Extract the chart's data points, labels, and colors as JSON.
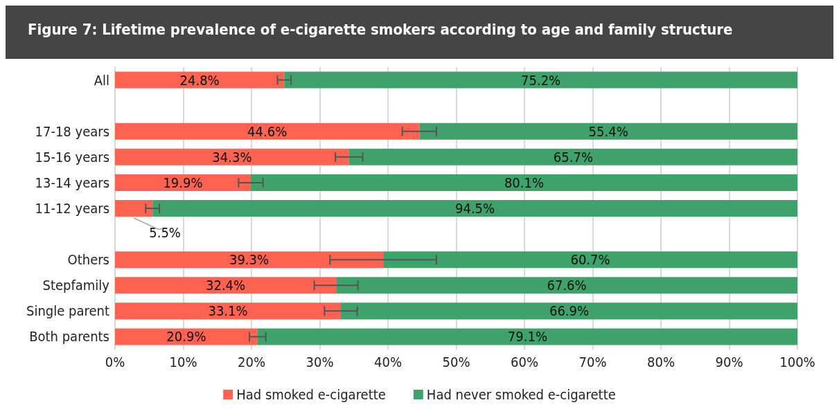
{
  "chart_data": {
    "type": "bar",
    "orientation": "horizontal",
    "stacked": true,
    "title": "Figure 7: Lifetime prevalence of e-cigarette smokers according to age and family structure",
    "categories": [
      "All",
      null,
      "17-18 years",
      "15-16 years",
      "13-14 years",
      "11-12 years",
      null,
      "Others",
      "Stepfamily",
      "Single parent",
      "Both parents"
    ],
    "series": [
      {
        "name": "Had smoked e-cigarette",
        "color": "#fe6250",
        "values": [
          24.8,
          null,
          44.6,
          34.3,
          19.9,
          5.5,
          null,
          39.3,
          32.4,
          33.1,
          20.9
        ],
        "value_labels": [
          "24.8%",
          null,
          "44.6%",
          "34.3%",
          "19.9%",
          "5.5%",
          null,
          "39.3%",
          "32.4%",
          "33.1%",
          "20.9%"
        ],
        "errors": [
          1.0,
          null,
          2.5,
          2.0,
          1.8,
          1.0,
          null,
          7.8,
          3.2,
          2.4,
          1.2
        ]
      },
      {
        "name": "Had never smoked e-cigarette",
        "color": "#40a26b",
        "values": [
          75.2,
          null,
          55.4,
          65.7,
          80.1,
          94.5,
          null,
          60.7,
          67.6,
          66.9,
          79.1
        ],
        "value_labels": [
          "75.2%",
          null,
          "55.4%",
          "65.7%",
          "80.1%",
          "94.5%",
          null,
          "60.7%",
          "67.6%",
          "66.9%",
          "79.1%"
        ]
      }
    ],
    "xlim": [
      0,
      100
    ],
    "xticks": [
      {
        "value": 0,
        "label": "0%"
      },
      {
        "value": 10,
        "label": "10%"
      },
      {
        "value": 20,
        "label": "20%"
      },
      {
        "value": 30,
        "label": "30%"
      },
      {
        "value": 40,
        "label": "40%"
      },
      {
        "value": 50,
        "label": "50%"
      },
      {
        "value": 60,
        "label": "60%"
      },
      {
        "value": 70,
        "label": "70%"
      },
      {
        "value": 80,
        "label": "80%"
      },
      {
        "value": 90,
        "label": "90%"
      },
      {
        "value": 100,
        "label": "100%"
      }
    ],
    "grid": "x",
    "legend": "bottom"
  }
}
